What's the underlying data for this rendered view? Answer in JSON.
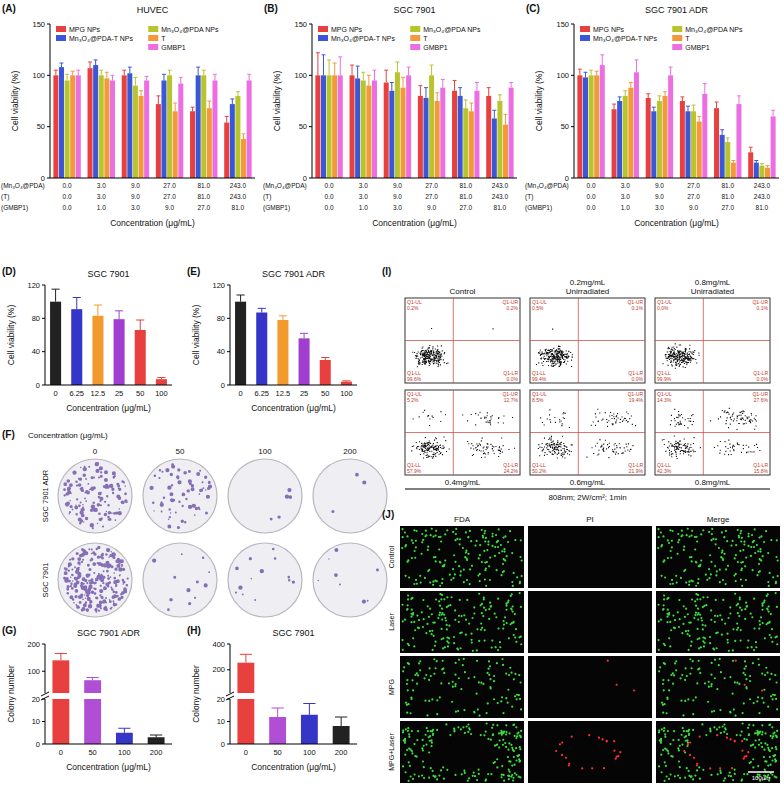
{
  "chart_data": [
    {
      "panel": "(A)",
      "type": "bar",
      "title": "HUVEC",
      "x_label": "Concentration (μg/mL)",
      "y_label": "Cell viability (%)",
      "categories_name": "(Mn₃O₄@PDA)",
      "categories": [
        "0.0",
        "3.0",
        "9.0",
        "27.0",
        "81.0",
        "243.0"
      ],
      "category_rows": [
        {
          "name": "(T)",
          "labels": [
            "0.0",
            "3.0",
            "9.0",
            "27.0",
            "81.0",
            "243.0"
          ]
        },
        {
          "name": "(GMBP1)",
          "labels": [
            "0.0",
            "1.0",
            "3.0",
            "9.0",
            "27.0",
            "81.0"
          ]
        }
      ],
      "ylim": [
        0,
        150
      ],
      "yticks": [
        0,
        50,
        100,
        150
      ],
      "legend": "top",
      "series": [
        {
          "name": "MPG NPs",
          "color": "#e8403f",
          "values": [
            100,
            107,
            100,
            72,
            65,
            54
          ],
          "errors": [
            5,
            6,
            5,
            8,
            4,
            6
          ]
        },
        {
          "name": "Mn₃O₄@PDA-T NPs",
          "color": "#3a57d8",
          "values": [
            108,
            110,
            102,
            95,
            100,
            72
          ],
          "errors": [
            4,
            5,
            6,
            6,
            8,
            5
          ]
        },
        {
          "name": "Mn₃O₄@PDA NPs",
          "color": "#b9c42c",
          "values": [
            95,
            100,
            90,
            100,
            100,
            80
          ],
          "errors": [
            6,
            5,
            8,
            5,
            5,
            4
          ]
        },
        {
          "name": "T",
          "color": "#f3993a",
          "values": [
            100,
            97,
            80,
            65,
            68,
            38
          ],
          "errors": [
            4,
            6,
            5,
            8,
            7,
            5
          ]
        },
        {
          "name": "GMBP1",
          "color": "#ec6ee0",
          "values": [
            100,
            95,
            95,
            92,
            95,
            95
          ],
          "errors": [
            5,
            5,
            4,
            6,
            6,
            6
          ]
        }
      ]
    },
    {
      "panel": "(B)",
      "type": "bar",
      "title": "SGC 7901",
      "x_label": "Concentration (μg/mL)",
      "y_label": "Cell viability (%)",
      "categories_name": "(Mn₃O₄@PDA)",
      "categories": [
        "0.0",
        "3.0",
        "9.0",
        "27.0",
        "81.0",
        "243.0"
      ],
      "category_rows": [
        {
          "name": "(T)",
          "labels": [
            "0.0",
            "3.0",
            "9.0",
            "27.0",
            "81.0",
            "243.0"
          ]
        },
        {
          "name": "(GMBP1)",
          "labels": [
            "0.0",
            "1.0",
            "3.0",
            "9.0",
            "27.0",
            "81.0"
          ]
        }
      ],
      "ylim": [
        0,
        150
      ],
      "yticks": [
        0,
        50,
        100,
        150
      ],
      "legend": "top",
      "series": [
        {
          "name": "MPG NPs",
          "color": "#e8403f",
          "values": [
            100,
            100,
            93,
            80,
            85,
            80
          ],
          "errors": [
            22,
            10,
            12,
            10,
            10,
            8
          ]
        },
        {
          "name": "Mn₃O₄@PDA-T NPs",
          "color": "#3a57d8",
          "values": [
            100,
            97,
            85,
            78,
            80,
            58
          ],
          "errors": [
            20,
            12,
            8,
            10,
            8,
            8
          ]
        },
        {
          "name": "Mn₃O₄@PDA NPs",
          "color": "#b9c42c",
          "values": [
            100,
            95,
            103,
            100,
            68,
            75
          ],
          "errors": [
            15,
            8,
            10,
            10,
            8,
            6
          ]
        },
        {
          "name": "T",
          "color": "#f3993a",
          "values": [
            100,
            90,
            88,
            75,
            65,
            52
          ],
          "errors": [
            12,
            10,
            10,
            8,
            8,
            10
          ]
        },
        {
          "name": "GMBP1",
          "color": "#ec6ee0",
          "values": [
            100,
            95,
            100,
            88,
            85,
            88
          ],
          "errors": [
            18,
            10,
            8,
            8,
            8,
            5
          ]
        }
      ]
    },
    {
      "panel": "(C)",
      "type": "bar",
      "title": "SGC 7901 ADR",
      "x_label": "Concentration (μg/mL)",
      "y_label": "Cell viability (%)",
      "categories_name": "(Mn₃O₄@PDA)",
      "categories": [
        "0.0",
        "3.0",
        "9.0",
        "27.0",
        "81.0",
        "243.0"
      ],
      "category_rows": [
        {
          "name": "(T)",
          "labels": [
            "0.0",
            "3.0",
            "9.0",
            "27.0",
            "81.0",
            "243.0"
          ]
        },
        {
          "name": "(GMBP1)",
          "labels": [
            "0.0",
            "1.0",
            "3.0",
            "9.0",
            "27.0",
            "81.0"
          ]
        }
      ],
      "ylim": [
        0,
        150
      ],
      "yticks": [
        0,
        50,
        100,
        150
      ],
      "legend": "top",
      "series": [
        {
          "name": "MPG NPs",
          "color": "#e8403f",
          "values": [
            100,
            67,
            78,
            75,
            68,
            25
          ],
          "errors": [
            6,
            5,
            4,
            4,
            6,
            5
          ]
        },
        {
          "name": "Mn₃O₄@PDA-T NPs",
          "color": "#3a57d8",
          "values": [
            98,
            75,
            65,
            65,
            42,
            15
          ],
          "errors": [
            5,
            4,
            4,
            5,
            5,
            2
          ]
        },
        {
          "name": "Mn₃O₄@PDA NPs",
          "color": "#b9c42c",
          "values": [
            100,
            80,
            75,
            65,
            35,
            12
          ],
          "errors": [
            5,
            5,
            5,
            6,
            4,
            2
          ]
        },
        {
          "name": "T",
          "color": "#f3993a",
          "values": [
            100,
            88,
            80,
            55,
            15,
            10
          ],
          "errors": [
            4,
            5,
            4,
            5,
            2,
            2
          ]
        },
        {
          "name": "GMBP1",
          "color": "#ec6ee0",
          "values": [
            110,
            103,
            100,
            82,
            72,
            60
          ],
          "errors": [
            10,
            12,
            8,
            10,
            8,
            6
          ]
        }
      ]
    },
    {
      "panel": "(D)",
      "type": "bar",
      "title": "SGC 7901",
      "x_label": "Concentration (μg/mL)",
      "y_label": "Cell viability (%)",
      "categories": [
        "0",
        "6.25",
        "12.5",
        "25",
        "50",
        "100"
      ],
      "values": [
        100,
        91,
        83,
        79,
        66,
        7
      ],
      "errors": [
        15,
        14,
        13,
        10,
        12,
        2
      ],
      "colors": [
        "#222222",
        "#3535c8",
        "#f39a2c",
        "#a03fcf",
        "#e8403f",
        "#e8403f"
      ],
      "ylim": [
        0,
        120
      ],
      "yticks": [
        0,
        40,
        80,
        120
      ]
    },
    {
      "panel": "(E)",
      "type": "bar",
      "title": "SGC 7901 ADR",
      "x_label": "Concentration (μg/mL)",
      "y_label": "Cell viability (%)",
      "categories": [
        "0",
        "6.25",
        "12.5",
        "25",
        "50",
        "100"
      ],
      "values": [
        100,
        87,
        78,
        56,
        30,
        4
      ],
      "errors": [
        8,
        5,
        5,
        6,
        3,
        1
      ],
      "colors": [
        "#222222",
        "#3535c8",
        "#f39a2c",
        "#a03fcf",
        "#e8403f",
        "#e8403f"
      ],
      "ylim": [
        0,
        120
      ],
      "yticks": [
        0,
        40,
        80,
        120
      ]
    },
    {
      "panel": "(G)",
      "type": "bar",
      "title": "SGC 7901 ADR",
      "x_label": "Concentration (μg/mL)",
      "y_label": "Colony number",
      "categories": [
        "0",
        "50",
        "100",
        "200"
      ],
      "values": [
        140,
        67,
        5,
        3
      ],
      "errors": [
        25,
        10,
        2,
        1
      ],
      "colors": [
        "#e8403f",
        "#b04fd6",
        "#3535c8",
        "#222222"
      ],
      "ylim": [
        0,
        200
      ],
      "yticks": [
        0,
        10,
        20,
        100,
        200
      ],
      "y_break": 20
    },
    {
      "panel": "(H)",
      "type": "bar",
      "title": "SGC 7901",
      "x_label": "Concentration (μg/mL)",
      "y_label": "Colony number",
      "categories": [
        "0",
        "50",
        "100",
        "200"
      ],
      "values": [
        255,
        12,
        13,
        8
      ],
      "errors": [
        65,
        4,
        5,
        4
      ],
      "colors": [
        "#e8403f",
        "#b04fd6",
        "#3535c8",
        "#222222"
      ],
      "ylim": [
        0,
        400
      ],
      "yticks": [
        0,
        10,
        20,
        200,
        400
      ],
      "y_break": 20
    }
  ],
  "colony_assay": {
    "panel": "(F)",
    "title": "Concentration (μg/mL)",
    "concentrations": [
      "0",
      "50",
      "100",
      "200"
    ],
    "cell_lines": [
      "SGC 7901 ADR",
      "SGC 7901"
    ]
  },
  "flow_cytometry": {
    "panel": "(I)",
    "condition": "808nm; 2W/cm²; 1min",
    "plots": [
      {
        "label": [
          "Control"
        ],
        "quadrants": [
          {
            "name": "Q1-UL",
            "value": 0.2,
            "label": "0.2%"
          },
          {
            "name": "Q1-UR",
            "value": 0.2,
            "label": "0.2%"
          },
          {
            "name": "Q1-LL",
            "value": 99.6,
            "label": "99.6%"
          },
          {
            "name": "Q1-LR",
            "value": 0.0,
            "label": "0.0%"
          }
        ]
      },
      {
        "label": [
          "0.2mg/mL",
          "Unirradiated"
        ],
        "quadrants": [
          {
            "name": "Q1-UL",
            "value": 0.5,
            "label": "0.5%"
          },
          {
            "name": "Q1-UR",
            "value": 0.1,
            "label": "0.1%"
          },
          {
            "name": "Q1-LL",
            "value": 99.4,
            "label": "99.4%"
          },
          {
            "name": "Q1-LR",
            "value": 0.0,
            "label": "0.0%"
          }
        ]
      },
      {
        "label": [
          "0.8mg/mL",
          "Unirradiated"
        ],
        "quadrants": [
          {
            "name": "Q1-UL",
            "value": 0.0,
            "label": "0.0%"
          },
          {
            "name": "Q1-UR",
            "value": 0.1,
            "label": "0.1%"
          },
          {
            "name": "Q1-LL",
            "value": 99.9,
            "label": "99.9%"
          },
          {
            "name": "Q1-LR",
            "value": 0.0,
            "label": "0.0%"
          }
        ]
      },
      {
        "label": [
          "0.4mg/mL"
        ],
        "quadrants": [
          {
            "name": "Q1-UL",
            "value": 5.2,
            "label": "5.2%"
          },
          {
            "name": "Q1-UR",
            "value": 12.7,
            "label": "12.7%"
          },
          {
            "name": "Q1-LL",
            "value": 57.9,
            "label": "57.9%"
          },
          {
            "name": "Q1-LR",
            "value": 24.2,
            "label": "24.2%"
          }
        ]
      },
      {
        "label": [
          "0.6mg/mL"
        ],
        "quadrants": [
          {
            "name": "Q1-UL",
            "value": 8.5,
            "label": "8.5%"
          },
          {
            "name": "Q1-UR",
            "value": 19.4,
            "label": "19.4%"
          },
          {
            "name": "Q1-LL",
            "value": 50.2,
            "label": "50.2%"
          },
          {
            "name": "Q1-LR",
            "value": 21.9,
            "label": "21.9%"
          }
        ]
      },
      {
        "label": [
          "0.8mg/mL"
        ],
        "quadrants": [
          {
            "name": "Q1-UL",
            "value": 14.3,
            "label": "14.3%"
          },
          {
            "name": "Q1-UR",
            "value": 27.6,
            "label": "27.6%"
          },
          {
            "name": "Q1-LL",
            "value": 42.3,
            "label": "42.3%"
          },
          {
            "name": "Q1-LR",
            "value": 15.8,
            "label": "15.8%"
          }
        ]
      }
    ]
  },
  "live_dead_staining": {
    "panel": "(J)",
    "channels": [
      "FDA",
      "PI",
      "Merge"
    ],
    "groups": [
      "Control",
      "Laser",
      "MPG",
      "MPG+Laser"
    ],
    "scale_bar": "100μm"
  }
}
